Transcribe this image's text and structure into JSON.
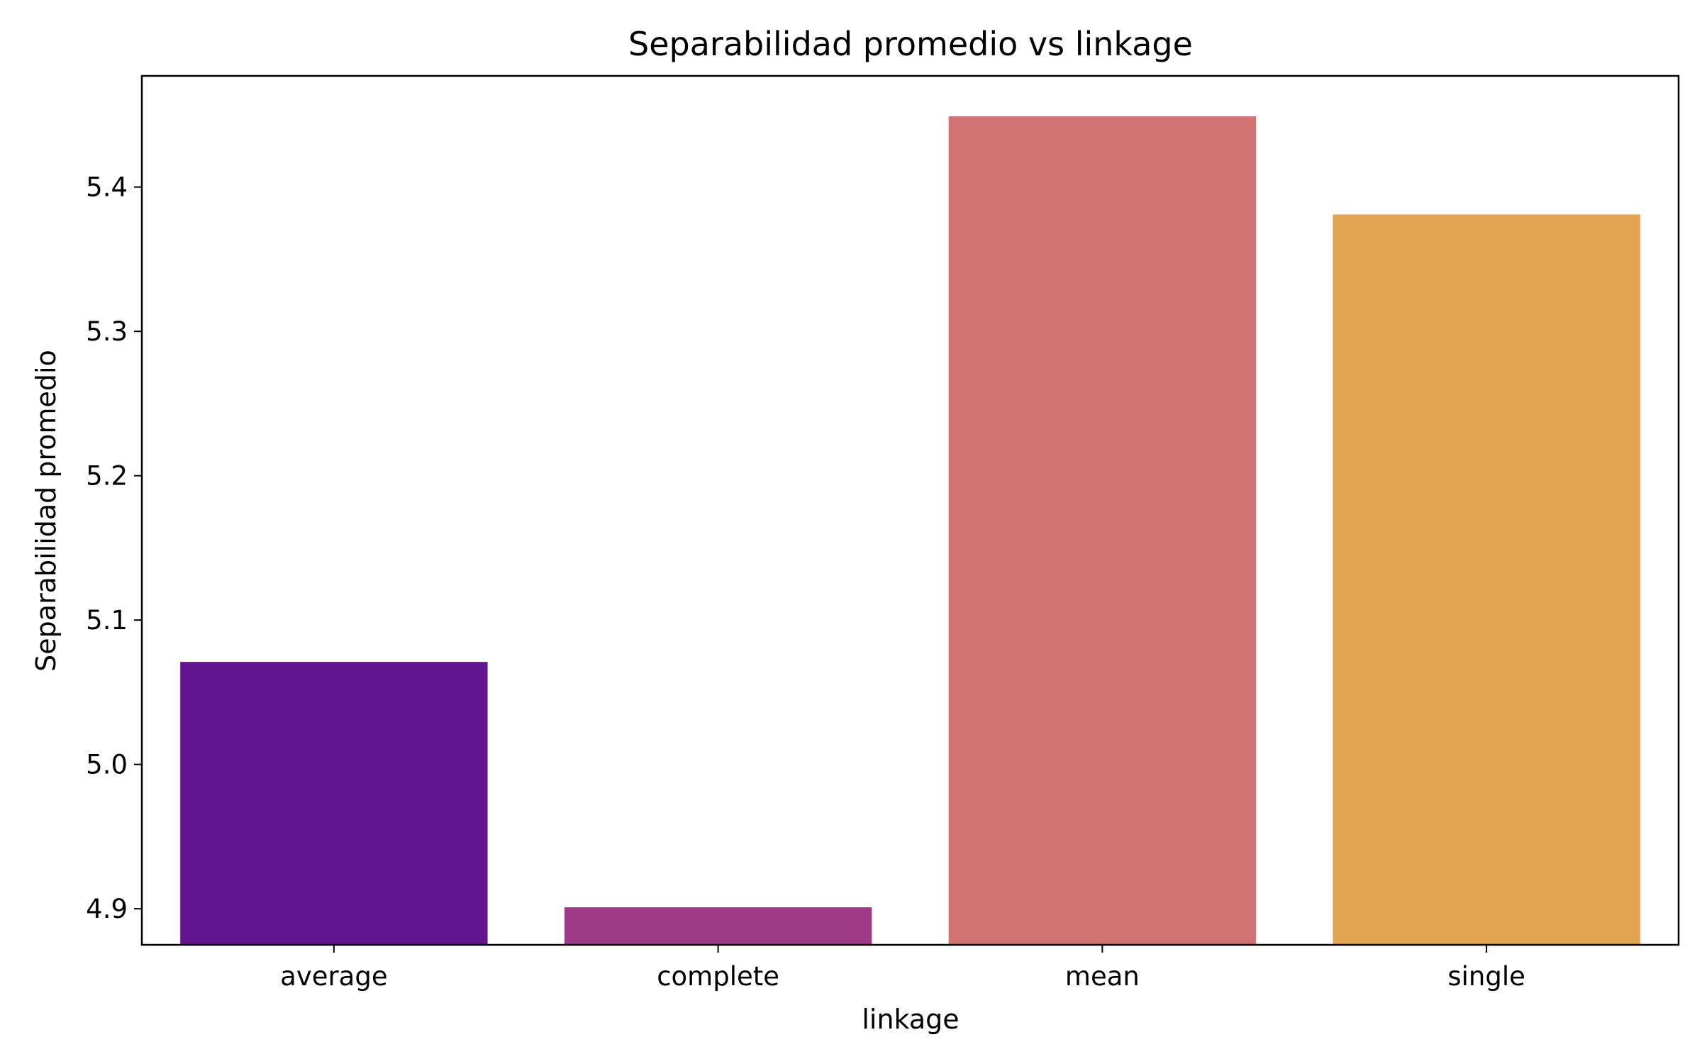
{
  "chart_data": {
    "type": "bar",
    "title": "Separabilidad promedio vs linkage",
    "xlabel": "linkage",
    "ylabel": "Separabilidad promedio",
    "categories": [
      "average",
      "complete",
      "mean",
      "single"
    ],
    "values": [
      5.071,
      4.901,
      5.449,
      5.381
    ],
    "colors": [
      "#63148F",
      "#9E3A86",
      "#D17373",
      "#E3A44F"
    ],
    "ylim": [
      4.875,
      5.477
    ],
    "yticks": [
      4.9,
      5.0,
      5.1,
      5.2,
      5.3,
      5.4
    ],
    "ytick_labels": [
      "4.9",
      "5.0",
      "5.1",
      "5.2",
      "5.3",
      "5.4"
    ],
    "grid": false,
    "legend": "none"
  }
}
